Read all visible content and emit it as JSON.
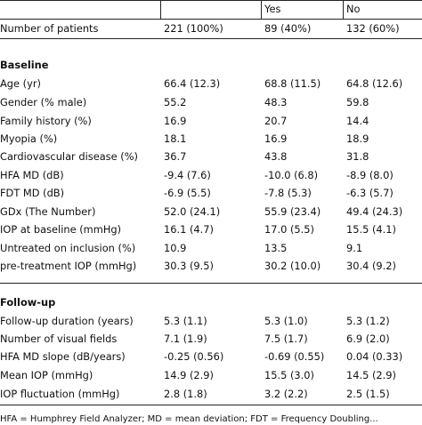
{
  "header": {
    "col_yes": "Yes",
    "col_no": "No"
  },
  "rows": [
    {
      "label": "Number of patients",
      "all": "221 (100%)",
      "yes": "89 (40%)",
      "no": "132 (60%)"
    },
    {
      "section": "Baseline"
    },
    {
      "label": "Age (yr)",
      "all": "66.4 (12.3)",
      "yes": "68.8 (11.5)",
      "no": "64.8 (12.6)"
    },
    {
      "label": "Gender (% male)",
      "all": "55.2",
      "yes": "48.3",
      "no": "59.8"
    },
    {
      "label": "Family history (%)",
      "all": "16.9",
      "yes": "20.7",
      "no": "14.4"
    },
    {
      "label": "Myopia (%)",
      "all": "18.1",
      "yes": "16.9",
      "no": "18.9"
    },
    {
      "label": "Cardiovascular disease (%)",
      "all": "36.7",
      "yes": "43.8",
      "no": "31.8"
    },
    {
      "label": "HFA MD (dB)",
      "all": "-9.4 (7.6)",
      "yes": "-10.0 (6.8)",
      "no": "-8.9 (8.0)"
    },
    {
      "label": "FDT MD (dB)",
      "all": "-6.9 (5.5)",
      "yes": "-7.8 (5.3)",
      "no": "-6.3 (5.7)"
    },
    {
      "label": "GDx (The Number)",
      "all": "52.0 (24.1)",
      "yes": "55.9 (23.4)",
      "no": "49.4 (24.3)"
    },
    {
      "label": "IOP at baseline (mmHg)",
      "all": "16.1 (4.7)",
      "yes": "17.0 (5.5)",
      "no": "15.5 (4.1)"
    },
    {
      "label": "Untreated on inclusion (%)",
      "all": "10.9",
      "yes": "13.5",
      "no": "9.1"
    },
    {
      "label": "pre-treatment IOP (mmHg)",
      "all": "30.3 (9.5)",
      "yes": "30.2 (10.0)",
      "no": "30.4 (9.2)"
    },
    {
      "section": "Follow-up"
    },
    {
      "label": "Follow-up duration (years)",
      "all": "5.3 (1.1)",
      "yes": "5.3 (1.0)",
      "no": "5.3 (1.2)"
    },
    {
      "label": "Number of visual fields",
      "all": "7.1 (1.9)",
      "yes": "7.5 (1.7)",
      "no": "6.9 (2.0)"
    },
    {
      "label": "HFA MD slope (dB/years)",
      "all": "-0.25 (0.56)",
      "yes": "-0.69 (0.55)",
      "no": "0.04 (0.33)"
    },
    {
      "label": "Mean IOP (mmHg)",
      "all": "14.9 (2.9)",
      "yes": "15.5 (3.0)",
      "no": "14.5 (2.9)"
    },
    {
      "label": "IOP fluctuation (mmHg)",
      "all": "2.8 (1.8)",
      "yes": "3.2 (2.2)",
      "no": "2.5 (1.5)"
    }
  ],
  "footnote": "HFA = Humphrey Field Analyzer; MD = mean deviation; FDT = Frequency Doubling..."
}
